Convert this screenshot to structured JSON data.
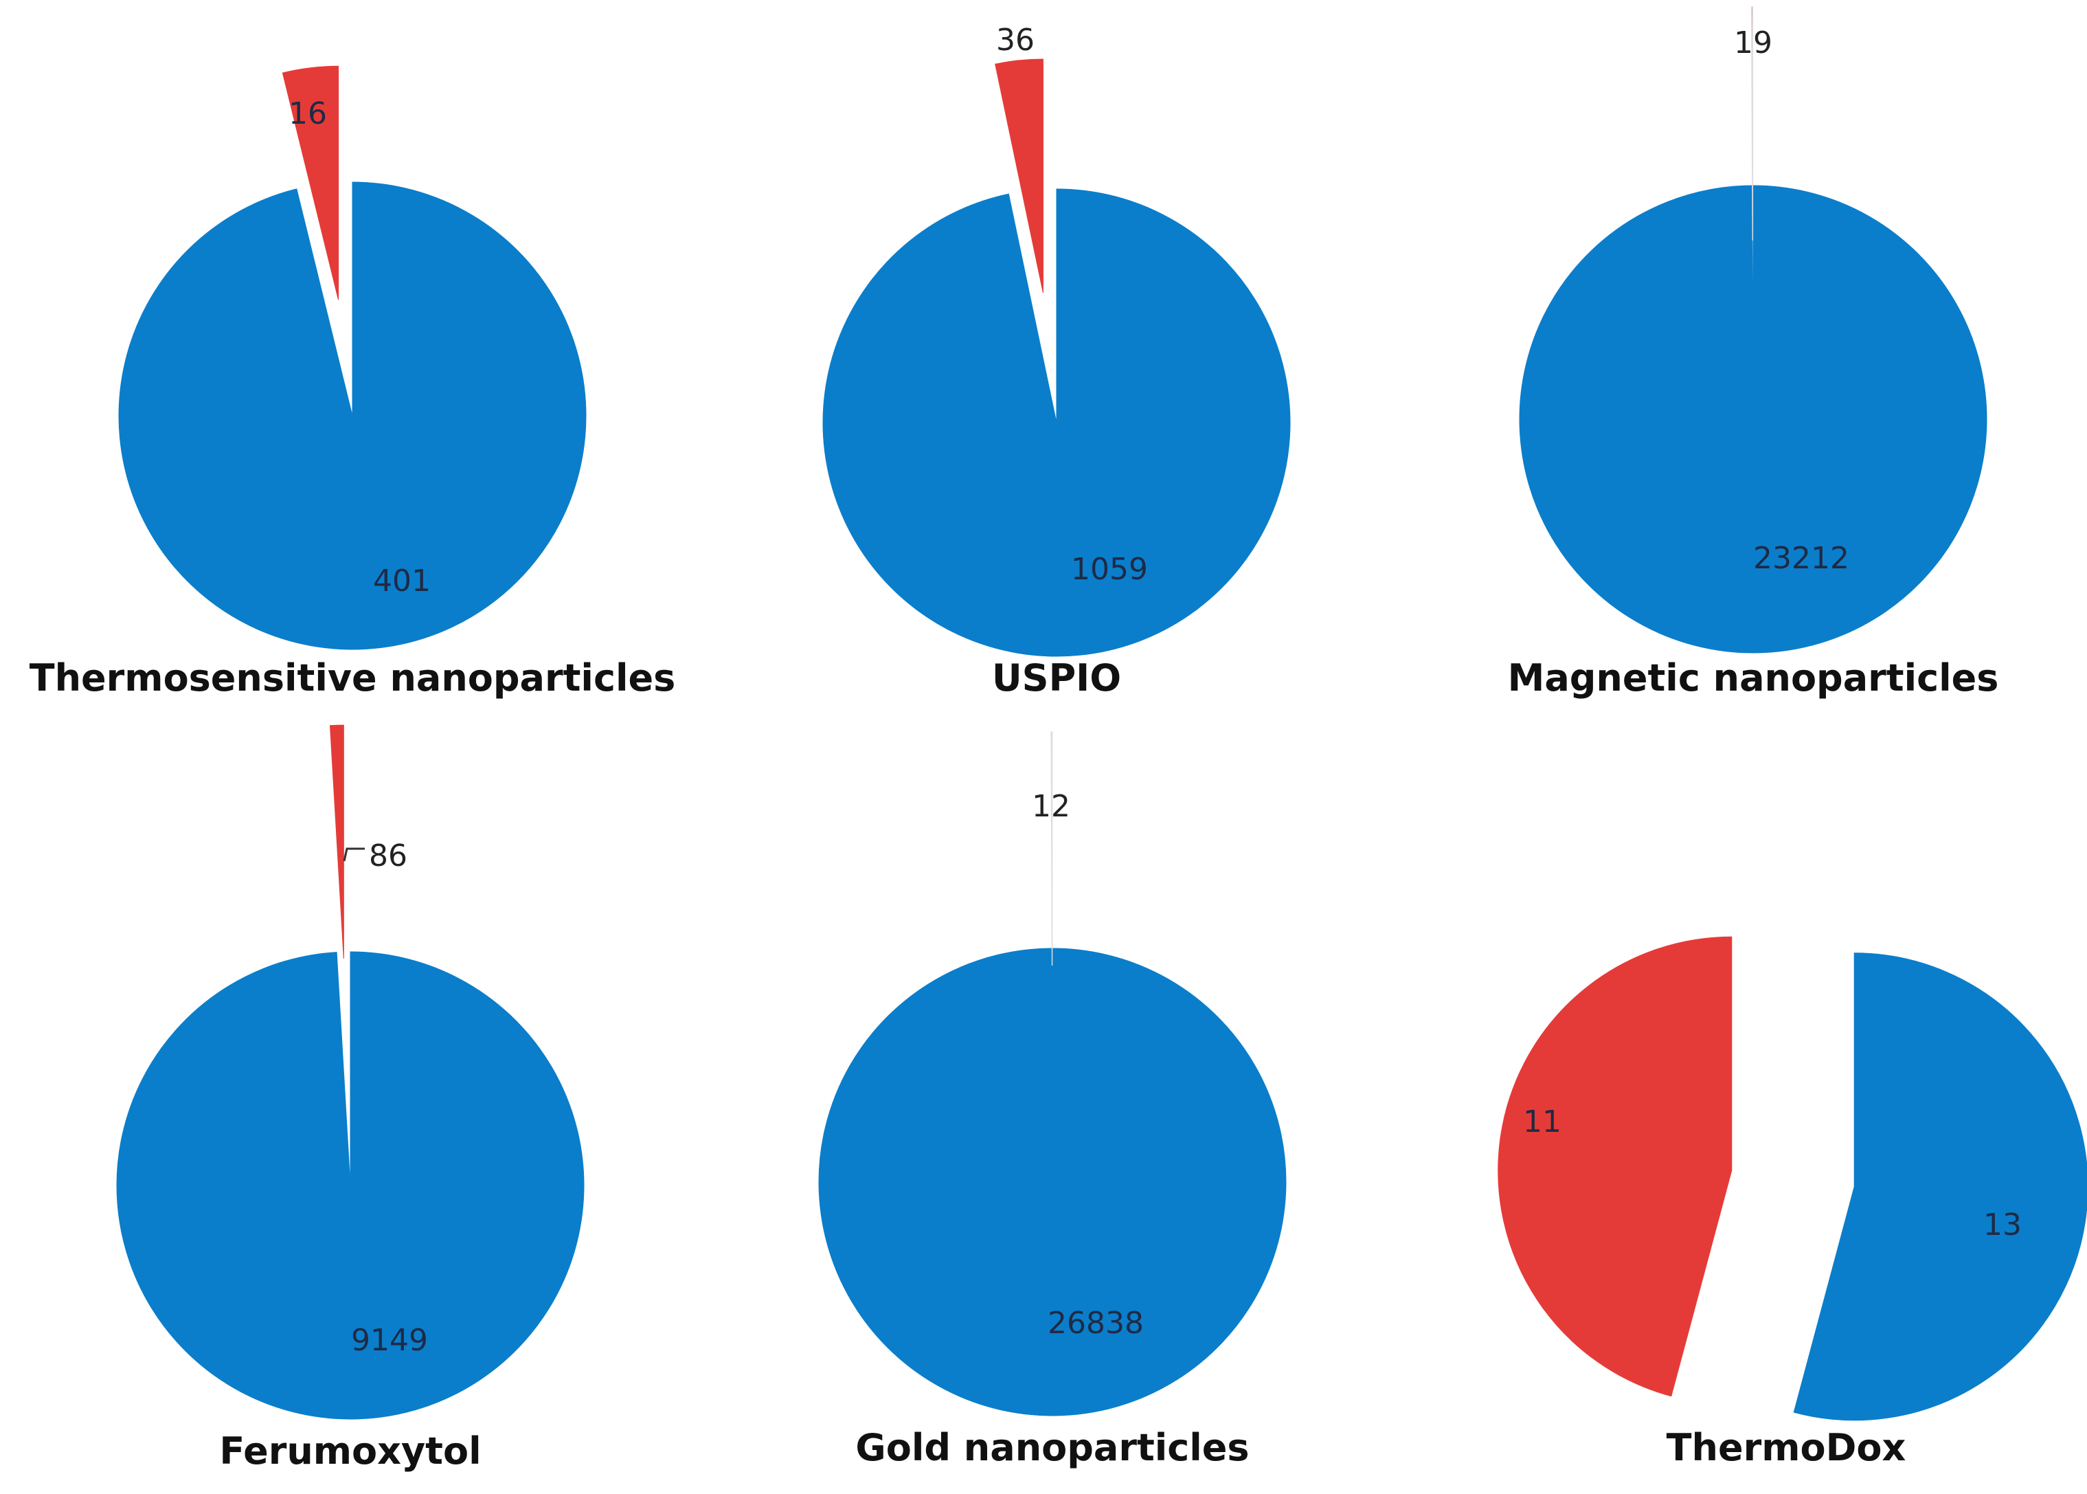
{
  "colors": {
    "blue": "#0a7ecb",
    "red": "#e53b38"
  },
  "chart_data": [
    {
      "type": "pie",
      "title": "Thermosensitive nanoparticles",
      "slices": [
        {
          "category": "red",
          "value": 16,
          "label": "16",
          "exploded": true
        },
        {
          "category": "blue",
          "value": 401,
          "label": "401",
          "exploded": false
        }
      ]
    },
    {
      "type": "pie",
      "title": "USPIO",
      "slices": [
        {
          "category": "red",
          "value": 36,
          "label": "36",
          "exploded": true
        },
        {
          "category": "blue",
          "value": 1059,
          "label": "1059",
          "exploded": false
        }
      ]
    },
    {
      "type": "pie",
      "title": "Magnetic nanoparticles",
      "slices": [
        {
          "category": "red",
          "value": 19,
          "label": "19",
          "exploded": true
        },
        {
          "category": "blue",
          "value": 23212,
          "label": "23212",
          "exploded": false
        }
      ]
    },
    {
      "type": "pie",
      "title": "Ferumoxytol",
      "slices": [
        {
          "category": "red",
          "value": 86,
          "label": "86",
          "exploded": true
        },
        {
          "category": "blue",
          "value": 9149,
          "label": "9149",
          "exploded": false
        }
      ]
    },
    {
      "type": "pie",
      "title": "Gold nanoparticles",
      "slices": [
        {
          "category": "red",
          "value": 12,
          "label": "12",
          "exploded": true
        },
        {
          "category": "blue",
          "value": 26838,
          "label": "26838",
          "exploded": false
        }
      ]
    },
    {
      "type": "pie",
      "title": "ThermoDox",
      "slices": [
        {
          "category": "red",
          "value": 11,
          "label": "11",
          "exploded": true
        },
        {
          "category": "blue",
          "value": 13,
          "label": "13",
          "exploded": true
        }
      ]
    }
  ]
}
